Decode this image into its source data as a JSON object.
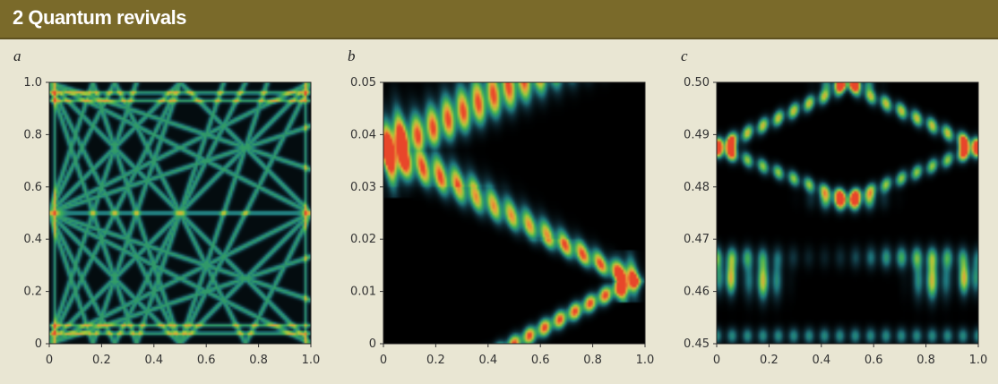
{
  "figure": {
    "title": "2 Quantum revivals",
    "background": "#e9e6d3",
    "title_bar_color": "#7a6a2a",
    "title_text_color": "#ffffff"
  },
  "colormap": [
    "#000000",
    "#0f2e38",
    "#1f7a80",
    "#3cae5a",
    "#a8c83a",
    "#e8a23a",
    "#e8462a"
  ],
  "chart_data": [
    {
      "type": "heatmap",
      "panel_label": "a",
      "xlim": [
        0,
        1
      ],
      "ylim": [
        0,
        1
      ],
      "x_ticks": [
        "0",
        "0.2",
        "0.4",
        "0.6",
        "0.8",
        "1.0"
      ],
      "y_ticks": [
        "0",
        "0.2",
        "0.4",
        "0.6",
        "0.8",
        "1.0"
      ],
      "xlabel": "",
      "ylabel": "",
      "pattern": "dense criss-cross quantum carpet with diagonal interference lines and bright horizontal bands near y = 0.05, 0.5 and 0.95"
    },
    {
      "type": "heatmap",
      "panel_label": "b",
      "xlim": [
        0,
        1
      ],
      "ylim": [
        0,
        0.05
      ],
      "x_ticks": [
        "0",
        "0.2",
        "0.4",
        "0.6",
        "0.8",
        "1.0"
      ],
      "y_ticks": [
        "0",
        "0.01",
        "0.02",
        "0.03",
        "0.04",
        "0.05"
      ],
      "xlabel": "",
      "ylabel": "",
      "pattern": "wave packet leaving the centre at t = 0, reflecting from the right wall near t = 0.012 and reaching the left wall near t = 0.037"
    },
    {
      "type": "heatmap",
      "panel_label": "c",
      "xlim": [
        0,
        1
      ],
      "ylim": [
        0.45,
        0.5
      ],
      "x_ticks": [
        "0",
        "0.2",
        "0.4",
        "0.6",
        "0.8",
        "1.0"
      ],
      "y_ticks": [
        "0.45",
        "0.46",
        "0.47",
        "0.48",
        "0.49",
        "0.50"
      ],
      "xlabel": "",
      "ylabel": "",
      "pattern": "interfering packets near the half revival: bright lobes at both walls around t = 0.4875, central fringes at t = 0.4775 and t = 0.4995"
    }
  ]
}
